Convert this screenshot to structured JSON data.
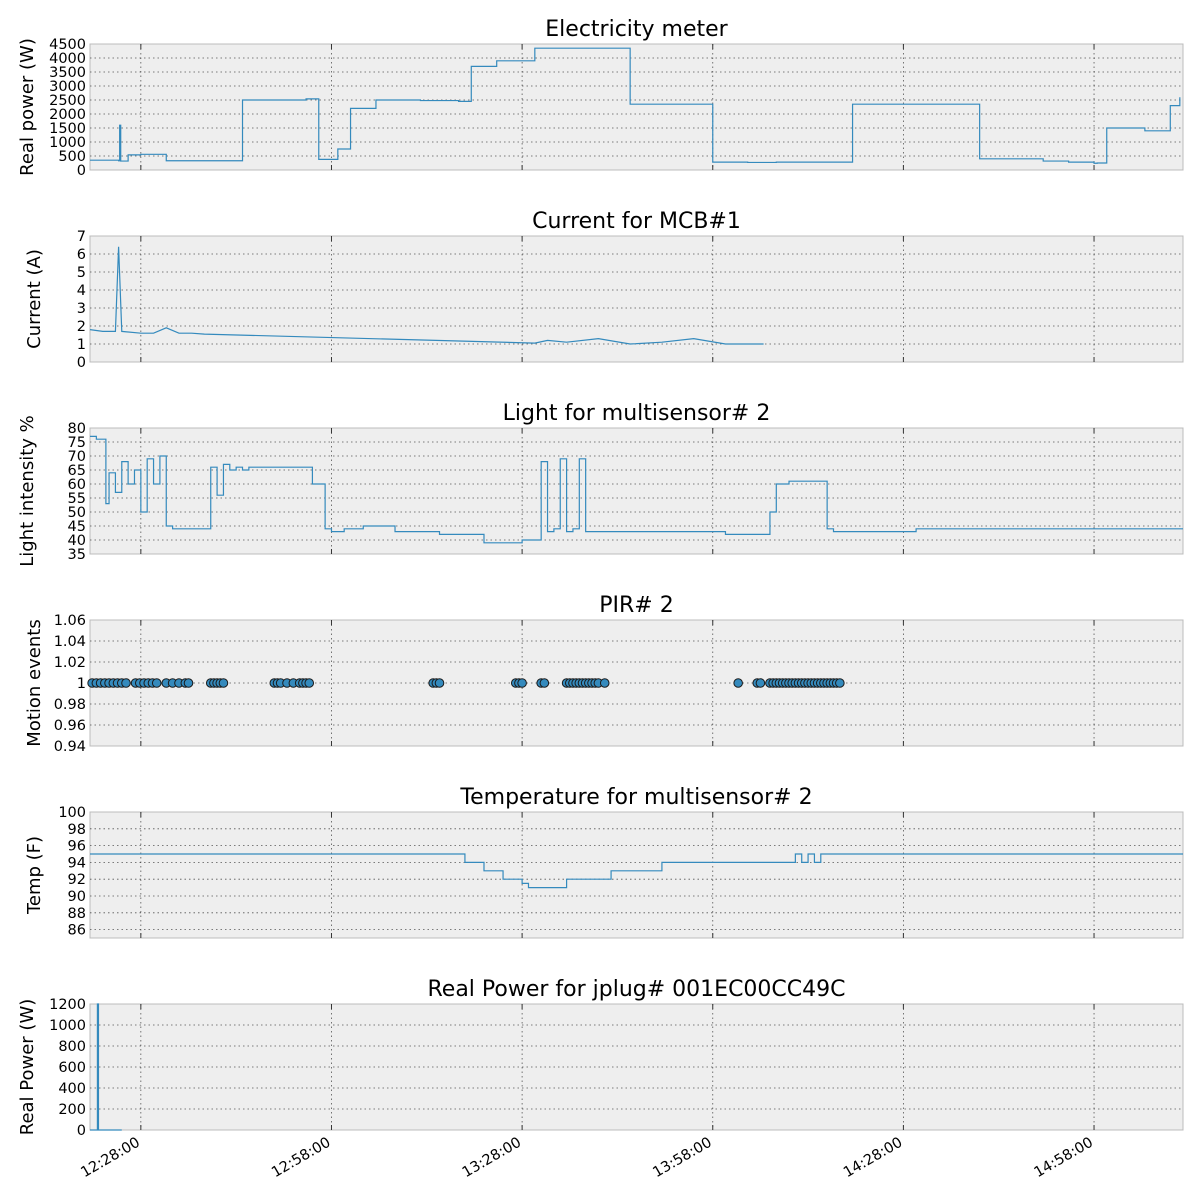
{
  "accent_color": "#348abd",
  "x_ticks": [
    "12:28:00",
    "12:58:00",
    "13:28:00",
    "13:58:00",
    "14:28:00",
    "14:58:00"
  ],
  "chart_data": [
    {
      "id": "elec",
      "type": "line",
      "step": true,
      "title": "Electricity meter",
      "ylabel": "Real power (W)",
      "xlim": [
        "12:20:00",
        "15:12:00"
      ],
      "ylim": [
        0,
        4500
      ],
      "yticks": [
        0,
        500,
        1000,
        1500,
        2000,
        2500,
        3000,
        3500,
        4000,
        4500
      ],
      "grid": true,
      "series": [
        {
          "x": [
            "12:20:00",
            "12:24:30",
            "12:24:40",
            "12:24:50",
            "12:26:00",
            "12:28:00",
            "12:32:00",
            "12:36:00",
            "12:44:00",
            "12:54:00",
            "12:56:00",
            "12:59:00",
            "13:01:00",
            "13:05:00",
            "13:12:00",
            "13:18:00",
            "13:20:00",
            "13:24:00",
            "13:30:00",
            "13:45:00",
            "13:58:00",
            "14:02:00",
            "14:03:30",
            "14:08:00",
            "14:20:00",
            "14:40:00",
            "14:50:00",
            "14:54:00",
            "14:58:00",
            "14:58:30",
            "15:00:00",
            "15:06:00",
            "15:10:00",
            "15:11:30"
          ],
          "y": [
            350,
            330,
            1600,
            320,
            540,
            560,
            330,
            330,
            2500,
            2540,
            380,
            750,
            2200,
            2500,
            2480,
            2450,
            3700,
            3900,
            4350,
            2350,
            280,
            280,
            270,
            280,
            2350,
            400,
            320,
            280,
            240,
            250,
            1500,
            1400,
            2300,
            2600
          ]
        }
      ]
    },
    {
      "id": "mcb",
      "type": "line",
      "step": false,
      "title": "Current for MCB#1",
      "ylabel": "Current (A)",
      "xlim": [
        "12:20:00",
        "15:12:00"
      ],
      "ylim": [
        0,
        7
      ],
      "yticks": [
        0,
        1,
        2,
        3,
        4,
        5,
        6,
        7
      ],
      "grid": true,
      "series": [
        {
          "x": [
            "12:20:00",
            "12:22:00",
            "12:24:00",
            "12:24:30",
            "12:25:00",
            "12:28:00",
            "12:30:00",
            "12:32:00",
            "12:34:00",
            "12:36:00",
            "12:38:00",
            "13:30:00",
            "13:32:00",
            "13:35:00",
            "13:40:00",
            "13:45:00",
            "13:50:00",
            "13:55:00",
            "14:00:00",
            "14:05:00",
            "14:06:00"
          ],
          "y": [
            1.8,
            1.7,
            1.7,
            6.4,
            1.7,
            1.6,
            1.6,
            1.9,
            1.6,
            1.6,
            1.55,
            1.05,
            1.2,
            1.1,
            1.3,
            1.0,
            1.1,
            1.3,
            1.0,
            1.0,
            1.0
          ]
        }
      ]
    },
    {
      "id": "light",
      "type": "line",
      "step": true,
      "title": "Light for multisensor# 2",
      "ylabel": "Light intensity %",
      "xlim": [
        "12:20:00",
        "15:12:00"
      ],
      "ylim": [
        35,
        80
      ],
      "yticks": [
        35,
        40,
        45,
        50,
        55,
        60,
        65,
        70,
        75,
        80
      ],
      "grid": true,
      "series": [
        {
          "x": [
            "12:20:00",
            "12:21:00",
            "12:22:30",
            "12:23:00",
            "12:24:00",
            "12:25:00",
            "12:26:00",
            "12:27:00",
            "12:28:00",
            "12:29:00",
            "12:30:00",
            "12:31:00",
            "12:32:00",
            "12:33:00",
            "12:38:00",
            "12:39:00",
            "12:40:00",
            "12:41:00",
            "12:42:00",
            "12:43:00",
            "12:44:00",
            "12:45:00",
            "12:50:00",
            "12:55:00",
            "12:57:00",
            "12:58:00",
            "13:00:00",
            "13:03:00",
            "13:08:00",
            "13:15:00",
            "13:22:00",
            "13:28:00",
            "13:30:00",
            "13:31:00",
            "13:32:00",
            "13:33:00",
            "13:34:00",
            "13:35:00",
            "13:36:00",
            "13:37:00",
            "13:38:00",
            "13:39:00",
            "13:40:00",
            "13:50:00",
            "14:00:00",
            "14:07:00",
            "14:08:00",
            "14:09:00",
            "14:10:00",
            "14:16:00",
            "14:17:00",
            "14:30:00",
            "14:50:00",
            "15:12:00"
          ],
          "y": [
            77,
            76,
            53,
            64,
            57,
            68,
            60,
            65,
            50,
            69,
            60,
            70,
            45,
            44,
            44,
            66,
            56,
            67,
            65,
            66,
            65,
            66,
            66,
            60,
            44,
            43,
            44,
            45,
            43,
            42,
            39,
            40,
            40,
            68,
            43,
            44,
            69,
            43,
            44,
            69,
            43,
            43,
            43,
            43,
            42,
            50,
            60,
            60,
            61,
            44,
            43,
            44,
            44,
            44
          ]
        }
      ]
    },
    {
      "id": "pir",
      "type": "scatter",
      "title": "PIR# 2",
      "ylabel": "Motion events",
      "xlim": [
        "12:20:00",
        "15:12:00"
      ],
      "ylim": [
        0.94,
        1.06
      ],
      "yticks": [
        0.94,
        0.96,
        0.98,
        1.0,
        1.02,
        1.04,
        1.06
      ],
      "grid": true,
      "series": [
        {
          "x": [
            "12:20:20",
            "12:21:00",
            "12:21:40",
            "12:22:20",
            "12:23:00",
            "12:23:40",
            "12:24:20",
            "12:25:00",
            "12:25:40",
            "12:27:10",
            "12:27:50",
            "12:28:30",
            "12:29:10",
            "12:29:50",
            "12:30:30",
            "12:32:00",
            "12:33:00",
            "12:34:00",
            "12:35:00",
            "12:35:30",
            "12:39:00",
            "12:39:30",
            "12:40:00",
            "12:40:30",
            "12:41:00",
            "12:49:00",
            "12:49:30",
            "12:50:00",
            "12:51:00",
            "12:52:00",
            "12:53:00",
            "12:53:30",
            "12:54:00",
            "12:54:30",
            "13:14:00",
            "13:14:30",
            "13:15:00",
            "13:27:00",
            "13:27:30",
            "13:28:00",
            "13:31:00",
            "13:31:30",
            "13:35:00",
            "13:35:30",
            "13:36:00",
            "13:36:30",
            "13:37:00",
            "13:37:30",
            "13:38:00",
            "13:38:30",
            "13:39:00",
            "13:39:30",
            "13:40:00",
            "13:41:00",
            "14:02:00",
            "14:05:00",
            "14:05:30",
            "14:07:00",
            "14:07:30",
            "14:08:00",
            "14:08:30",
            "14:09:00",
            "14:09:30",
            "14:10:00",
            "14:10:30",
            "14:11:00",
            "14:11:30",
            "14:12:00",
            "14:12:30",
            "14:13:00",
            "14:13:30",
            "14:14:00",
            "14:14:30",
            "14:15:00",
            "14:15:30",
            "14:16:00",
            "14:16:30",
            "14:17:00",
            "14:17:30",
            "14:18:00"
          ],
          "y": [
            1,
            1,
            1,
            1,
            1,
            1,
            1,
            1,
            1,
            1,
            1,
            1,
            1,
            1,
            1,
            1,
            1,
            1,
            1,
            1,
            1,
            1,
            1,
            1,
            1,
            1,
            1,
            1,
            1,
            1,
            1,
            1,
            1,
            1,
            1,
            1,
            1,
            1,
            1,
            1,
            1,
            1,
            1,
            1,
            1,
            1,
            1,
            1,
            1,
            1,
            1,
            1,
            1,
            1,
            1,
            1,
            1,
            1,
            1,
            1,
            1,
            1,
            1,
            1,
            1,
            1,
            1,
            1,
            1,
            1,
            1,
            1,
            1,
            1,
            1,
            1,
            1,
            1,
            1,
            1
          ]
        }
      ]
    },
    {
      "id": "temp",
      "type": "line",
      "step": true,
      "title": "Temperature for multisensor# 2",
      "ylabel": "Temp (F)",
      "xlim": [
        "12:20:00",
        "15:12:00"
      ],
      "ylim": [
        85,
        100
      ],
      "yticks": [
        86,
        88,
        90,
        92,
        94,
        96,
        98,
        100
      ],
      "grid": true,
      "series": [
        {
          "x": [
            "12:20:00",
            "13:19:00",
            "13:22:00",
            "13:25:00",
            "13:28:00",
            "13:29:00",
            "13:30:00",
            "13:35:00",
            "13:42:00",
            "13:50:00",
            "14:10:00",
            "14:11:00",
            "14:12:00",
            "14:13:00",
            "14:14:00",
            "14:15:00",
            "14:16:00",
            "15:12:00"
          ],
          "y": [
            95,
            94,
            93,
            92,
            91.5,
            91,
            91,
            92,
            93,
            94,
            94,
            95,
            94,
            95,
            94,
            95,
            95,
            95
          ]
        }
      ]
    },
    {
      "id": "jplug",
      "type": "line",
      "step": true,
      "title": "Real Power for jplug# 001EC00CC49C",
      "ylabel": "Real Power (W)",
      "xlim": [
        "12:20:00",
        "15:12:00"
      ],
      "ylim": [
        0,
        1200
      ],
      "yticks": [
        0,
        200,
        400,
        600,
        800,
        1000,
        1200
      ],
      "grid": true,
      "series": [
        {
          "x": [
            "12:20:00",
            "12:21:10",
            "12:21:20",
            "12:25:00"
          ],
          "y": [
            0,
            1200,
            0,
            0
          ]
        }
      ]
    }
  ]
}
